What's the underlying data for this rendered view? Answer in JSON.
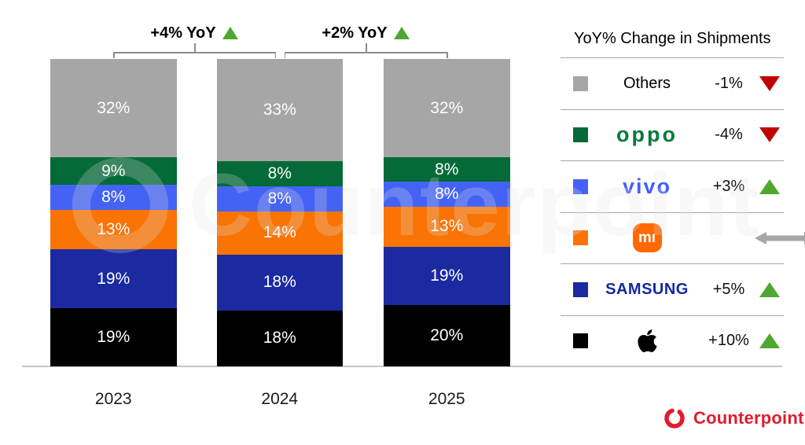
{
  "chart_data": {
    "type": "bar",
    "stacked": true,
    "title": "",
    "categories": [
      "2023",
      "2024",
      "2025"
    ],
    "series": [
      {
        "name": "Apple",
        "color": "#000000",
        "values": [
          19,
          18,
          20
        ]
      },
      {
        "name": "Samsung",
        "color": "#1b2aa0",
        "values": [
          19,
          18,
          19
        ]
      },
      {
        "name": "Xiaomi",
        "color": "#f97404",
        "values": [
          13,
          14,
          13
        ]
      },
      {
        "name": "vivo",
        "color": "#4463f5",
        "values": [
          8,
          8,
          8
        ]
      },
      {
        "name": "OPPO",
        "color": "#046a38",
        "values": [
          9,
          8,
          8
        ]
      },
      {
        "name": "Others",
        "color": "#a6a6a6",
        "values": [
          32,
          33,
          32
        ]
      }
    ],
    "value_suffix": "%",
    "ylim": [
      0,
      100
    ],
    "grid": false,
    "legend_position": "right",
    "annotations": [
      {
        "text": "+4% YoY",
        "direction": "up",
        "between": [
          "2023",
          "2024"
        ]
      },
      {
        "text": "+2% YoY",
        "direction": "up",
        "between": [
          "2024",
          "2025"
        ]
      }
    ]
  },
  "legend": {
    "title": "YoY% Change in Shipments",
    "rows": [
      {
        "brand": "Others",
        "logo_style": "text-black",
        "swatch": "#a6a6a6",
        "change": "-1%",
        "direction": "down"
      },
      {
        "brand": "oppo",
        "logo_style": "oppo",
        "swatch": "#046a38",
        "change": "-4%",
        "direction": "down"
      },
      {
        "brand": "vivo",
        "logo_style": "vivo",
        "swatch": "#4463f5",
        "change": "+3%",
        "direction": "up"
      },
      {
        "brand": "mı",
        "logo_style": "mi",
        "swatch": "#f97404",
        "change": "",
        "direction": "flat"
      },
      {
        "brand": "SAMSUNG",
        "logo_style": "samsung",
        "swatch": "#1b2aa0",
        "change": "+5%",
        "direction": "up"
      },
      {
        "brand": "Apple",
        "logo_style": "apple",
        "swatch": "#000000",
        "change": "+10%",
        "direction": "up"
      }
    ]
  },
  "colors": {
    "up": "#4ea72e",
    "down": "#c00000",
    "flat": "#a6a6a6",
    "axis": "#c6c6c6",
    "bracket": "#8c8c8c",
    "oppo_logo": "#057a3c",
    "vivo_logo": "#415fff",
    "samsung_logo": "#1428a0",
    "mi_logo": "#ff6900",
    "counterpoint_red": "#e11b2d"
  },
  "watermark": {
    "text": "Counterpoint"
  },
  "footer": {
    "logo_text": "Counterpoint"
  }
}
